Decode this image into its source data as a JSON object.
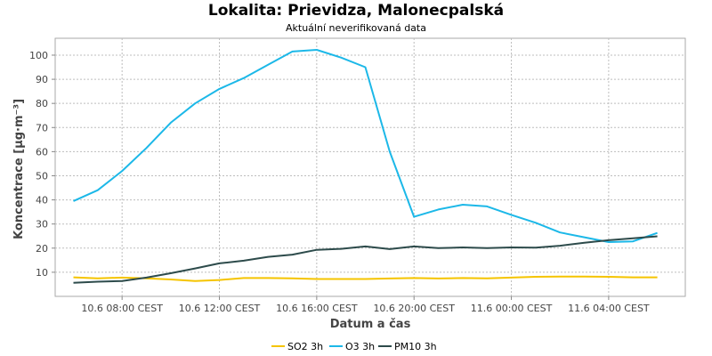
{
  "chart_data": {
    "type": "line",
    "title": "Lokalita: Prievidza, Malonecpalská",
    "subtitle": "Aktuální neverifikovaná data",
    "xlabel": "Datum a čas",
    "ylabel": "Koncentrace [µg·m⁻³]",
    "ylim": [
      0,
      107
    ],
    "yticks": [
      10,
      20,
      30,
      40,
      50,
      60,
      70,
      80,
      90,
      100
    ],
    "x_hours": [
      0,
      2,
      4,
      6,
      8,
      10,
      12,
      14,
      16,
      18,
      20,
      22,
      24,
      26,
      28,
      30,
      32,
      34,
      36,
      38,
      40,
      42,
      44,
      46,
      48
    ],
    "xlim": [
      -1.5,
      50.3
    ],
    "xticks": [
      {
        "hour": 4,
        "label": "10.6 08:00 CEST"
      },
      {
        "hour": 12,
        "label": "10.6 12:00 CEST"
      },
      {
        "hour": 20,
        "label": "10.6 16:00 CEST"
      },
      {
        "hour": 28,
        "label": "10.6 20:00 CEST"
      },
      {
        "hour": 36,
        "label": "11.6 00:00 CEST"
      },
      {
        "hour": 44,
        "label": "11.6 04:00 CEST"
      }
    ],
    "grid": true,
    "legend_position": "bottom",
    "series": [
      {
        "name": "SO2 3h",
        "color": "#f5c400",
        "values": [
          7.9,
          7.5,
          7.8,
          7.5,
          7.0,
          6.4,
          6.8,
          7.6,
          7.6,
          7.5,
          7.2,
          7.2,
          7.2,
          7.4,
          7.6,
          7.4,
          7.6,
          7.5,
          7.8,
          8.1,
          8.2,
          8.2,
          8.1,
          7.9,
          7.9
        ]
      },
      {
        "name": "O3 3h",
        "color": "#1cb8e8",
        "values": [
          39.5,
          44,
          52,
          61.5,
          72,
          80,
          86,
          90.5,
          96,
          101.5,
          102.2,
          99,
          95,
          60,
          33,
          36,
          38,
          37.3,
          33.8,
          30.5,
          26.5,
          24.5,
          22.5,
          22.8,
          26.3
        ]
      },
      {
        "name": "PM10 3h",
        "color": "#2d4b4b",
        "values": [
          5.6,
          6.1,
          6.4,
          7.8,
          9.6,
          11.6,
          13.7,
          14.8,
          16.4,
          17.3,
          19.3,
          19.7,
          20.7,
          19.6,
          20.7,
          20.0,
          20.3,
          20.0,
          20.3,
          20.2,
          21.0,
          22.2,
          23.3,
          24.1,
          24.9
        ]
      }
    ]
  }
}
